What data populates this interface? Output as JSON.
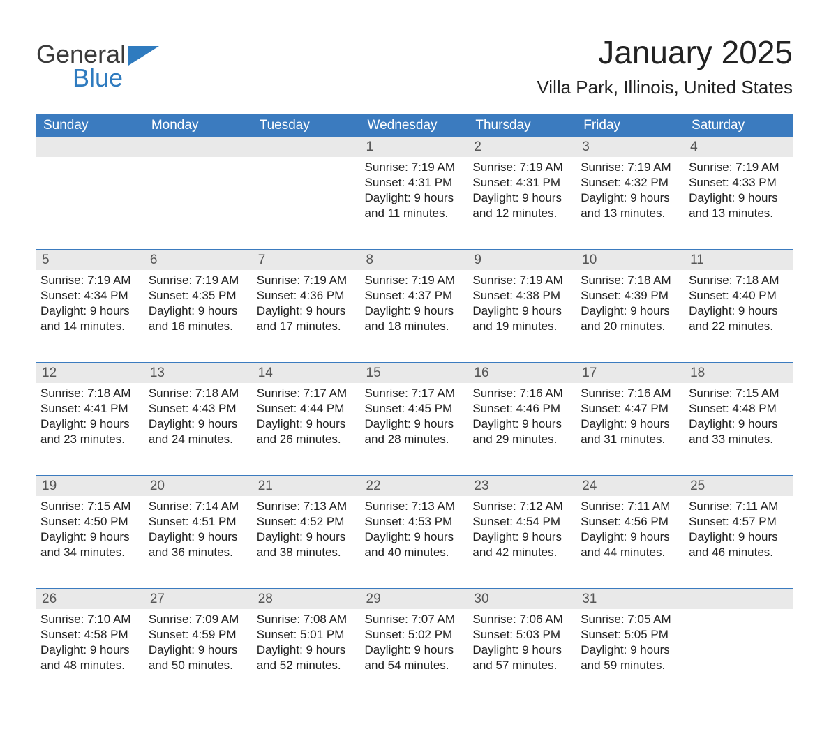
{
  "logo": {
    "word1": "General",
    "word2": "Blue",
    "flag_color": "#2f7bbf",
    "text_color": "#3b3b3b"
  },
  "title": "January 2025",
  "location": "Villa Park, Illinois, United States",
  "colors": {
    "header_bg": "#3b7bbf",
    "header_text": "#ffffff",
    "daynum_bg": "#e9e9e9",
    "separator": "#3b7bbf",
    "body_text": "#222222"
  },
  "day_headers": [
    "Sunday",
    "Monday",
    "Tuesday",
    "Wednesday",
    "Thursday",
    "Friday",
    "Saturday"
  ],
  "weeks": [
    [
      null,
      null,
      null,
      {
        "n": "1",
        "sunrise": "Sunrise: 7:19 AM",
        "sunset": "Sunset: 4:31 PM",
        "d1": "Daylight: 9 hours",
        "d2": "and 11 minutes."
      },
      {
        "n": "2",
        "sunrise": "Sunrise: 7:19 AM",
        "sunset": "Sunset: 4:31 PM",
        "d1": "Daylight: 9 hours",
        "d2": "and 12 minutes."
      },
      {
        "n": "3",
        "sunrise": "Sunrise: 7:19 AM",
        "sunset": "Sunset: 4:32 PM",
        "d1": "Daylight: 9 hours",
        "d2": "and 13 minutes."
      },
      {
        "n": "4",
        "sunrise": "Sunrise: 7:19 AM",
        "sunset": "Sunset: 4:33 PM",
        "d1": "Daylight: 9 hours",
        "d2": "and 13 minutes."
      }
    ],
    [
      {
        "n": "5",
        "sunrise": "Sunrise: 7:19 AM",
        "sunset": "Sunset: 4:34 PM",
        "d1": "Daylight: 9 hours",
        "d2": "and 14 minutes."
      },
      {
        "n": "6",
        "sunrise": "Sunrise: 7:19 AM",
        "sunset": "Sunset: 4:35 PM",
        "d1": "Daylight: 9 hours",
        "d2": "and 16 minutes."
      },
      {
        "n": "7",
        "sunrise": "Sunrise: 7:19 AM",
        "sunset": "Sunset: 4:36 PM",
        "d1": "Daylight: 9 hours",
        "d2": "and 17 minutes."
      },
      {
        "n": "8",
        "sunrise": "Sunrise: 7:19 AM",
        "sunset": "Sunset: 4:37 PM",
        "d1": "Daylight: 9 hours",
        "d2": "and 18 minutes."
      },
      {
        "n": "9",
        "sunrise": "Sunrise: 7:19 AM",
        "sunset": "Sunset: 4:38 PM",
        "d1": "Daylight: 9 hours",
        "d2": "and 19 minutes."
      },
      {
        "n": "10",
        "sunrise": "Sunrise: 7:18 AM",
        "sunset": "Sunset: 4:39 PM",
        "d1": "Daylight: 9 hours",
        "d2": "and 20 minutes."
      },
      {
        "n": "11",
        "sunrise": "Sunrise: 7:18 AM",
        "sunset": "Sunset: 4:40 PM",
        "d1": "Daylight: 9 hours",
        "d2": "and 22 minutes."
      }
    ],
    [
      {
        "n": "12",
        "sunrise": "Sunrise: 7:18 AM",
        "sunset": "Sunset: 4:41 PM",
        "d1": "Daylight: 9 hours",
        "d2": "and 23 minutes."
      },
      {
        "n": "13",
        "sunrise": "Sunrise: 7:18 AM",
        "sunset": "Sunset: 4:43 PM",
        "d1": "Daylight: 9 hours",
        "d2": "and 24 minutes."
      },
      {
        "n": "14",
        "sunrise": "Sunrise: 7:17 AM",
        "sunset": "Sunset: 4:44 PM",
        "d1": "Daylight: 9 hours",
        "d2": "and 26 minutes."
      },
      {
        "n": "15",
        "sunrise": "Sunrise: 7:17 AM",
        "sunset": "Sunset: 4:45 PM",
        "d1": "Daylight: 9 hours",
        "d2": "and 28 minutes."
      },
      {
        "n": "16",
        "sunrise": "Sunrise: 7:16 AM",
        "sunset": "Sunset: 4:46 PM",
        "d1": "Daylight: 9 hours",
        "d2": "and 29 minutes."
      },
      {
        "n": "17",
        "sunrise": "Sunrise: 7:16 AM",
        "sunset": "Sunset: 4:47 PM",
        "d1": "Daylight: 9 hours",
        "d2": "and 31 minutes."
      },
      {
        "n": "18",
        "sunrise": "Sunrise: 7:15 AM",
        "sunset": "Sunset: 4:48 PM",
        "d1": "Daylight: 9 hours",
        "d2": "and 33 minutes."
      }
    ],
    [
      {
        "n": "19",
        "sunrise": "Sunrise: 7:15 AM",
        "sunset": "Sunset: 4:50 PM",
        "d1": "Daylight: 9 hours",
        "d2": "and 34 minutes."
      },
      {
        "n": "20",
        "sunrise": "Sunrise: 7:14 AM",
        "sunset": "Sunset: 4:51 PM",
        "d1": "Daylight: 9 hours",
        "d2": "and 36 minutes."
      },
      {
        "n": "21",
        "sunrise": "Sunrise: 7:13 AM",
        "sunset": "Sunset: 4:52 PM",
        "d1": "Daylight: 9 hours",
        "d2": "and 38 minutes."
      },
      {
        "n": "22",
        "sunrise": "Sunrise: 7:13 AM",
        "sunset": "Sunset: 4:53 PM",
        "d1": "Daylight: 9 hours",
        "d2": "and 40 minutes."
      },
      {
        "n": "23",
        "sunrise": "Sunrise: 7:12 AM",
        "sunset": "Sunset: 4:54 PM",
        "d1": "Daylight: 9 hours",
        "d2": "and 42 minutes."
      },
      {
        "n": "24",
        "sunrise": "Sunrise: 7:11 AM",
        "sunset": "Sunset: 4:56 PM",
        "d1": "Daylight: 9 hours",
        "d2": "and 44 minutes."
      },
      {
        "n": "25",
        "sunrise": "Sunrise: 7:11 AM",
        "sunset": "Sunset: 4:57 PM",
        "d1": "Daylight: 9 hours",
        "d2": "and 46 minutes."
      }
    ],
    [
      {
        "n": "26",
        "sunrise": "Sunrise: 7:10 AM",
        "sunset": "Sunset: 4:58 PM",
        "d1": "Daylight: 9 hours",
        "d2": "and 48 minutes."
      },
      {
        "n": "27",
        "sunrise": "Sunrise: 7:09 AM",
        "sunset": "Sunset: 4:59 PM",
        "d1": "Daylight: 9 hours",
        "d2": "and 50 minutes."
      },
      {
        "n": "28",
        "sunrise": "Sunrise: 7:08 AM",
        "sunset": "Sunset: 5:01 PM",
        "d1": "Daylight: 9 hours",
        "d2": "and 52 minutes."
      },
      {
        "n": "29",
        "sunrise": "Sunrise: 7:07 AM",
        "sunset": "Sunset: 5:02 PM",
        "d1": "Daylight: 9 hours",
        "d2": "and 54 minutes."
      },
      {
        "n": "30",
        "sunrise": "Sunrise: 7:06 AM",
        "sunset": "Sunset: 5:03 PM",
        "d1": "Daylight: 9 hours",
        "d2": "and 57 minutes."
      },
      {
        "n": "31",
        "sunrise": "Sunrise: 7:05 AM",
        "sunset": "Sunset: 5:05 PM",
        "d1": "Daylight: 9 hours",
        "d2": "and 59 minutes."
      },
      null
    ]
  ]
}
